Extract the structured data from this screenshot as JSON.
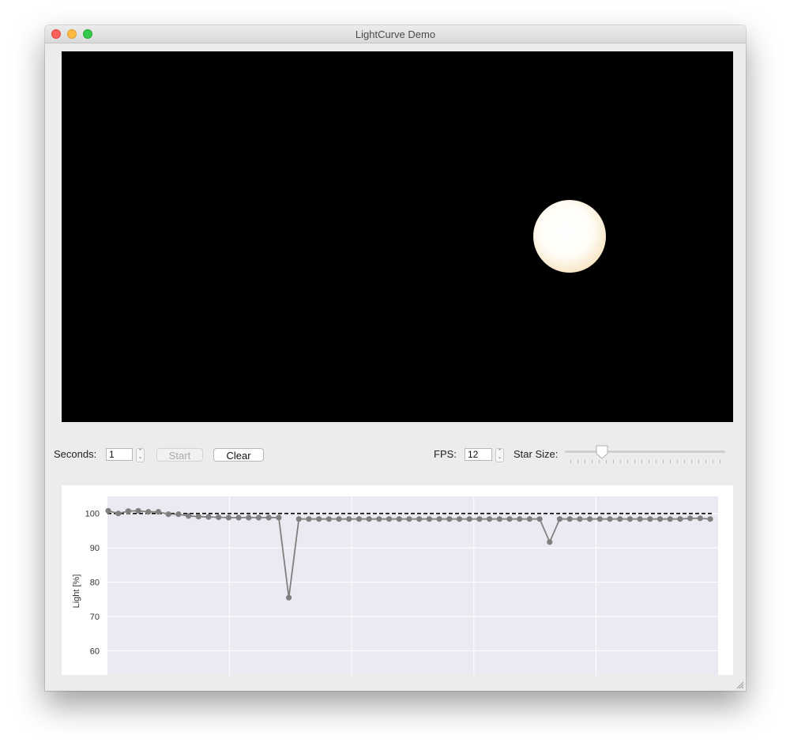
{
  "window": {
    "title": "LightCurve Demo"
  },
  "controls": {
    "seconds_label": "Seconds:",
    "seconds_value": "1",
    "start_label": "Start",
    "clear_label": "Clear",
    "fps_label": "FPS:",
    "fps_value": "12",
    "star_size_label": "Star Size:"
  },
  "chart_data": {
    "type": "line",
    "ylabel": "Light [%]",
    "yticks": [
      100,
      90,
      80,
      70,
      60
    ],
    "ylim": [
      53,
      105
    ],
    "xlim": [
      0,
      60
    ],
    "grid": true,
    "reference_line": 100,
    "series": [
      {
        "values": [
          100.8,
          100.0,
          100.7,
          100.8,
          100.5,
          100.5,
          99.8,
          99.8,
          99.3,
          99.1,
          99.0,
          98.9,
          98.8,
          98.8,
          98.8,
          98.8,
          98.8,
          98.8,
          75.5,
          98.4,
          98.4,
          98.4,
          98.4,
          98.4,
          98.4,
          98.4,
          98.4,
          98.4,
          98.4,
          98.4,
          98.4,
          98.4,
          98.4,
          98.4,
          98.4,
          98.4,
          98.4,
          98.4,
          98.4,
          98.4,
          98.4,
          98.4,
          98.4,
          98.4,
          91.7,
          98.4,
          98.4,
          98.4,
          98.4,
          98.4,
          98.4,
          98.4,
          98.4,
          98.4,
          98.4,
          98.4,
          98.4,
          98.4,
          98.6,
          98.6,
          98.4
        ]
      }
    ]
  },
  "colors": {
    "plot_background": "#eaeaf2",
    "series": "#808080",
    "reference": "#000000",
    "grid": "#ffffff"
  },
  "icons": {
    "stepper": "stepper-arrows-icon",
    "resize": "resize-grip-icon"
  }
}
